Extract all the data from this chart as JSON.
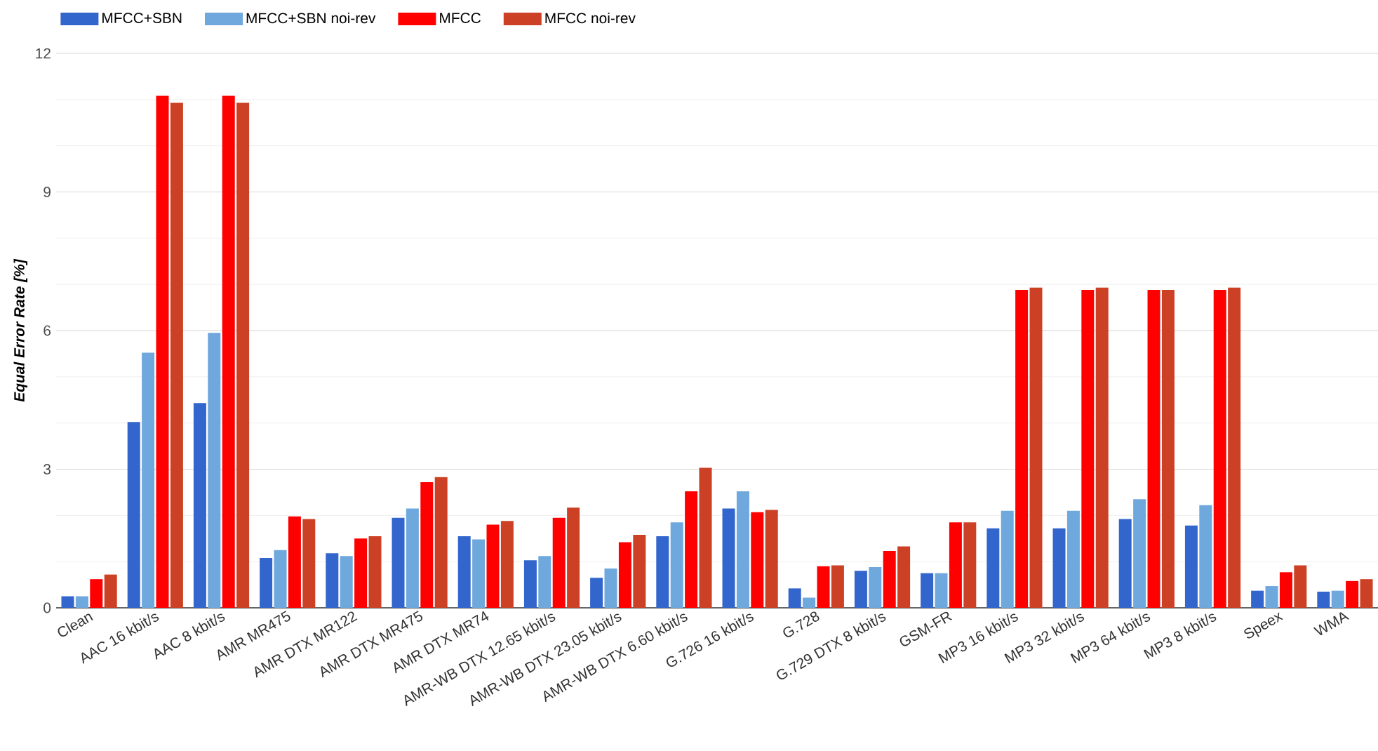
{
  "chart_data": {
    "type": "bar",
    "ylabel": "Equal Error Rate [%]",
    "categories": [
      "Clean",
      "AAC 16 kbit/s",
      "AAC 8 kbit/s",
      "AMR MR475",
      "AMR DTX MR122",
      "AMR DTX MR475",
      "AMR DTX MR74",
      "AMR-WB DTX 12.65 kbit/s",
      "AMR-WB DTX 23.05 kbit/s",
      "AMR-WB DTX 6.60 kbit/s",
      "G.726 16 kbit/s",
      "G.728",
      "G.729 DTX 8 kbit/s",
      "GSM-FR",
      "MP3 16 kbit/s",
      "MP3 32 kbit/s",
      "MP3 64 kbit/s",
      "MP3 8 kbit/s",
      "Speex",
      "WMA"
    ],
    "series": [
      {
        "name": "MFCC+SBN",
        "color": "#3366cc",
        "values": [
          0.25,
          4.02,
          4.43,
          1.08,
          1.18,
          1.95,
          1.55,
          1.03,
          0.65,
          1.55,
          2.15,
          0.42,
          0.8,
          0.75,
          1.72,
          1.72,
          1.92,
          1.78,
          0.37,
          0.35
        ]
      },
      {
        "name": "MFCC+SBN noi-rev",
        "color": "#6fa8dc",
        "values": [
          0.25,
          5.52,
          5.95,
          1.25,
          1.12,
          2.15,
          1.48,
          1.12,
          0.85,
          1.85,
          2.52,
          0.22,
          0.88,
          0.75,
          2.1,
          2.1,
          2.35,
          2.22,
          0.47,
          0.37
        ]
      },
      {
        "name": "MFCC",
        "color": "#ff0000",
        "values": [
          0.62,
          11.08,
          11.08,
          1.98,
          1.5,
          2.72,
          1.8,
          1.95,
          1.42,
          2.52,
          2.07,
          0.9,
          1.23,
          1.85,
          6.88,
          6.88,
          6.88,
          6.88,
          0.77,
          0.58
        ]
      },
      {
        "name": "MFCC noi-rev",
        "color": "#cc4125",
        "values": [
          0.72,
          10.93,
          10.93,
          1.92,
          1.55,
          2.83,
          1.88,
          2.17,
          1.58,
          3.03,
          2.12,
          0.92,
          1.33,
          1.85,
          6.93,
          6.93,
          6.88,
          6.93,
          0.92,
          0.62
        ]
      }
    ],
    "ylim": [
      0,
      12
    ],
    "yticks": [
      0,
      3,
      6,
      9,
      12
    ],
    "grid": "y",
    "legend": "top left"
  }
}
